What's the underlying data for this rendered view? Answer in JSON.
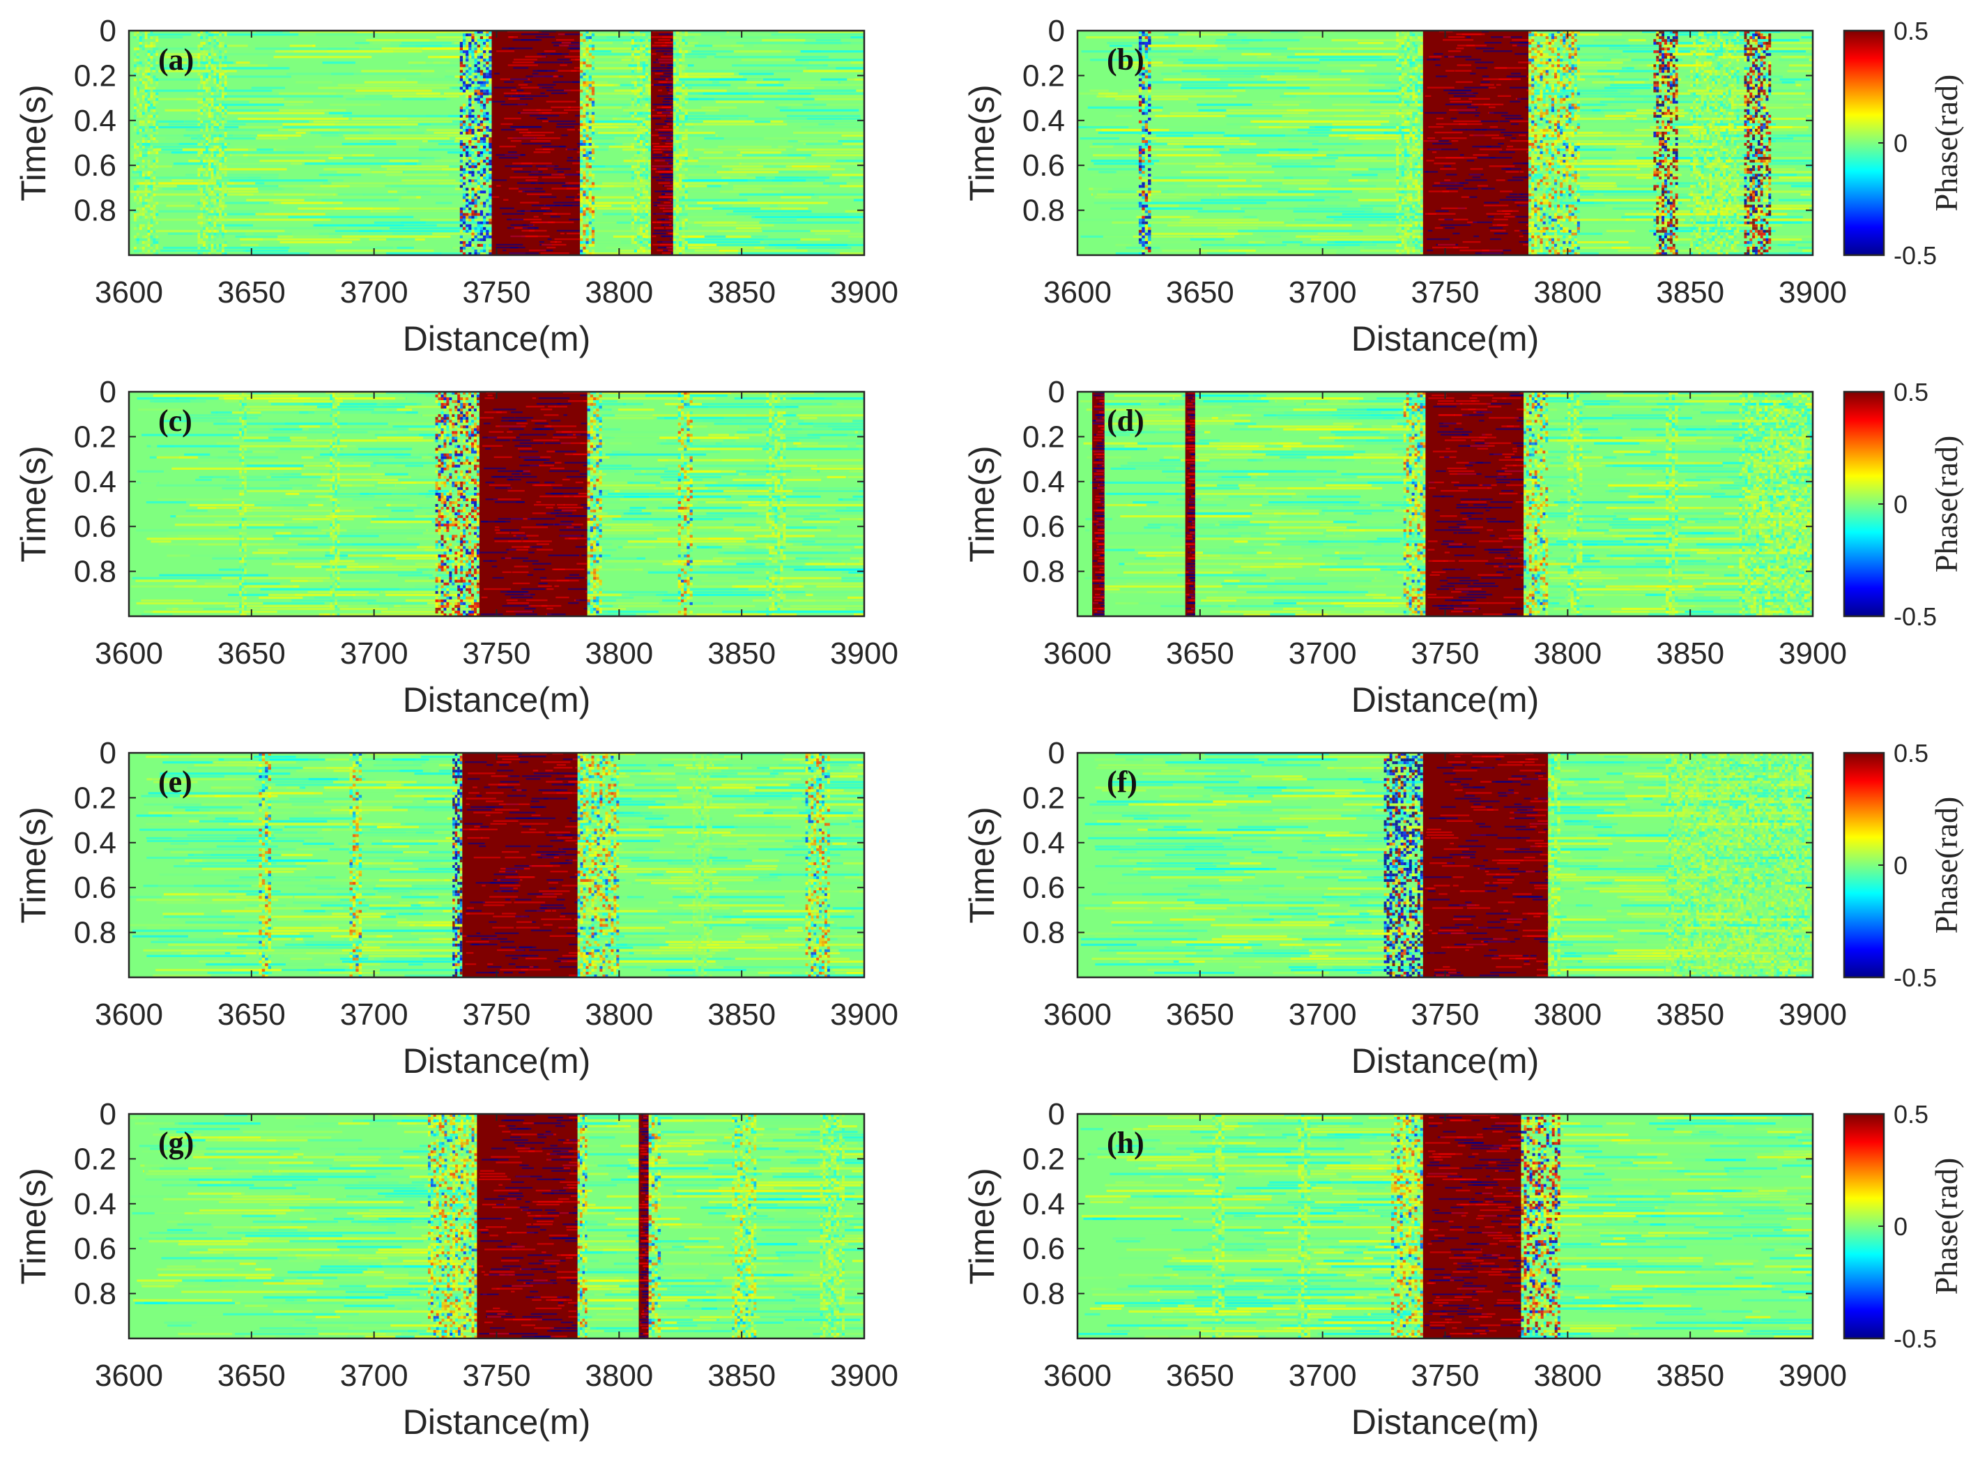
{
  "chart_data": {
    "type": "heatmap",
    "colormap": [
      "#00008f",
      "#0000ff",
      "#00ffff",
      "#7fff7f",
      "#ffff00",
      "#ff0000",
      "#7f0000"
    ],
    "colormap_name": "jet",
    "xlabel": "Distance(m)",
    "ylabel": "Time(s)",
    "xlim": [
      3600,
      3900
    ],
    "ylim": [
      1,
      0
    ],
    "xticks": [
      "3600",
      "3650",
      "3700",
      "3750",
      "3800",
      "3850",
      "3900"
    ],
    "yticks": [
      "0",
      "0.2",
      "0.4",
      "0.6",
      "0.8"
    ],
    "colorbar": {
      "label": "Phase(rad)",
      "range": [
        -0.5,
        0.5
      ],
      "ticks": [
        "0.5",
        "0",
        "-0.5"
      ]
    },
    "panels": [
      {
        "label": "(a)",
        "solid_bands": [
          {
            "x0": 3748,
            "x1": 3784,
            "value": 0.5
          },
          {
            "x0": 3813,
            "x1": 3822,
            "value": 0.5
          }
        ],
        "noisy_bands": [
          {
            "x0": 3735,
            "x1": 3748,
            "value": -0.3
          },
          {
            "x0": 3784,
            "x1": 3790,
            "value": 0.2
          },
          {
            "x0": 3805,
            "x1": 3813,
            "value": 0.1
          },
          {
            "x0": 3822,
            "x1": 3828,
            "value": 0.1
          },
          {
            "x0": 3628,
            "x1": 3640,
            "value": 0.1
          },
          {
            "x0": 3602,
            "x1": 3612,
            "value": 0.1
          }
        ],
        "label_bands": [
          {
            "x0": 3742,
            "x1": 3752,
            "value": -0.5
          }
        ]
      },
      {
        "label": "(b)",
        "solid_bands": [
          {
            "x0": 3741,
            "x1": 3784,
            "value": 0.5
          }
        ],
        "noisy_bands": [
          {
            "x0": 3625,
            "x1": 3630,
            "value": -0.3
          },
          {
            "x0": 3730,
            "x1": 3741,
            "value": 0.1
          },
          {
            "x0": 3784,
            "x1": 3805,
            "value": 0.2
          },
          {
            "x0": 3835,
            "x1": 3845,
            "value": 0.4
          },
          {
            "x0": 3872,
            "x1": 3883,
            "value": 0.4
          },
          {
            "x0": 3850,
            "x1": 3870,
            "value": 0.1
          }
        ],
        "label_bands": []
      },
      {
        "label": "(c)",
        "solid_bands": [
          {
            "x0": 3743,
            "x1": 3787,
            "value": 0.5
          }
        ],
        "noisy_bands": [
          {
            "x0": 3725,
            "x1": 3743,
            "value": 0.3
          },
          {
            "x0": 3787,
            "x1": 3793,
            "value": 0.2
          },
          {
            "x0": 3824,
            "x1": 3830,
            "value": 0.2
          },
          {
            "x0": 3860,
            "x1": 3868,
            "value": 0.1
          },
          {
            "x0": 3645,
            "x1": 3648,
            "value": 0.1
          },
          {
            "x0": 3682,
            "x1": 3686,
            "value": 0.1
          }
        ],
        "label_bands": []
      },
      {
        "label": "(d)",
        "solid_bands": [
          {
            "x0": 3742,
            "x1": 3782,
            "value": 0.5
          },
          {
            "x0": 3606,
            "x1": 3611,
            "value": 0.5
          },
          {
            "x0": 3644,
            "x1": 3648,
            "value": 0.5
          }
        ],
        "noisy_bands": [
          {
            "x0": 3733,
            "x1": 3742,
            "value": 0.2
          },
          {
            "x0": 3782,
            "x1": 3792,
            "value": 0.2
          },
          {
            "x0": 3840,
            "x1": 3845,
            "value": 0.1
          },
          {
            "x0": 3870,
            "x1": 3900,
            "value": 0.1
          },
          {
            "x0": 3800,
            "x1": 3806,
            "value": 0.1
          }
        ],
        "label_bands": []
      },
      {
        "label": "(e)",
        "solid_bands": [
          {
            "x0": 3736,
            "x1": 3783,
            "value": 0.5
          }
        ],
        "noisy_bands": [
          {
            "x0": 3732,
            "x1": 3736,
            "value": -0.4
          },
          {
            "x0": 3783,
            "x1": 3800,
            "value": 0.2
          },
          {
            "x0": 3653,
            "x1": 3658,
            "value": 0.2
          },
          {
            "x0": 3690,
            "x1": 3695,
            "value": 0.2
          },
          {
            "x0": 3876,
            "x1": 3886,
            "value": 0.2
          },
          {
            "x0": 3830,
            "x1": 3838,
            "value": 0.05
          }
        ],
        "label_bands": []
      },
      {
        "label": "(f)",
        "solid_bands": [
          {
            "x0": 3741,
            "x1": 3792,
            "value": 0.5
          }
        ],
        "noisy_bands": [
          {
            "x0": 3725,
            "x1": 3741,
            "value": -0.4
          },
          {
            "x0": 3792,
            "x1": 3797,
            "value": 0.1
          },
          {
            "x0": 3840,
            "x1": 3900,
            "value": 0.08
          }
        ],
        "label_bands": []
      },
      {
        "label": "(g)",
        "solid_bands": [
          {
            "x0": 3742,
            "x1": 3783,
            "value": 0.5
          },
          {
            "x0": 3808,
            "x1": 3812,
            "value": 0.5
          }
        ],
        "noisy_bands": [
          {
            "x0": 3722,
            "x1": 3742,
            "value": 0.2
          },
          {
            "x0": 3783,
            "x1": 3787,
            "value": 0.2
          },
          {
            "x0": 3812,
            "x1": 3817,
            "value": 0.2
          },
          {
            "x0": 3846,
            "x1": 3856,
            "value": 0.15
          },
          {
            "x0": 3882,
            "x1": 3892,
            "value": 0.1
          }
        ],
        "label_bands": []
      },
      {
        "label": "(h)",
        "solid_bands": [
          {
            "x0": 3741,
            "x1": 3781,
            "value": 0.5
          }
        ],
        "noisy_bands": [
          {
            "x0": 3728,
            "x1": 3741,
            "value": 0.2
          },
          {
            "x0": 3781,
            "x1": 3797,
            "value": 0.3
          },
          {
            "x0": 3655,
            "x1": 3660,
            "value": 0.1
          },
          {
            "x0": 3690,
            "x1": 3695,
            "value": 0.1
          }
        ],
        "label_bands": []
      }
    ]
  }
}
